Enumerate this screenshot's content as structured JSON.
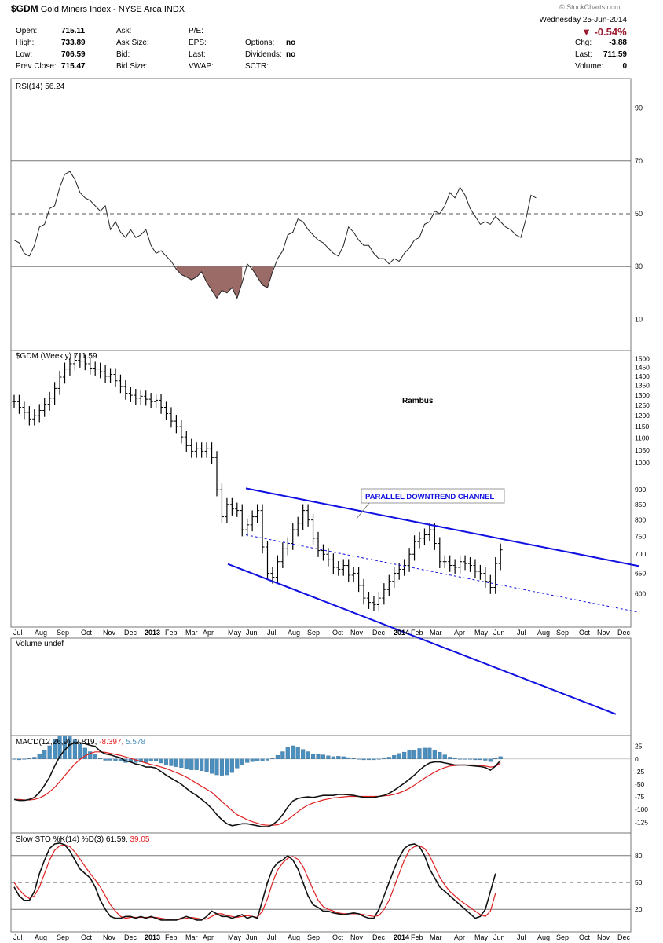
{
  "header": {
    "symbol": "$GDM",
    "name": "Gold Miners Index - NYSE Arca INDX",
    "watermark": "© StockCharts.com",
    "date": "Wednesday   25-Jun-2014",
    "pct_change": "▼ -0.54%",
    "quote_left": [
      {
        "label": "Open:",
        "value": "715.11"
      },
      {
        "label": "High:",
        "value": "733.89"
      },
      {
        "label": "Low:",
        "value": "706.59"
      },
      {
        "label": "Prev Close:",
        "value": "715.47"
      }
    ],
    "quote_mid": [
      {
        "label": "Ask:",
        "value": ""
      },
      {
        "label": "Ask Size:",
        "value": ""
      },
      {
        "label": "Bid:",
        "value": ""
      },
      {
        "label": "Bid Size:",
        "value": ""
      }
    ],
    "quote_mid2": [
      {
        "label": "P/E:",
        "value": ""
      },
      {
        "label": "EPS:",
        "value": ""
      },
      {
        "label": "Last:",
        "value": ""
      },
      {
        "label": "VWAP:",
        "value": ""
      }
    ],
    "quote_right": [
      {
        "label": "",
        "value": ""
      },
      {
        "label": "Options:",
        "value": "no"
      },
      {
        "label": "Dividends:",
        "value": "no"
      },
      {
        "label": "SCTR:",
        "value": ""
      }
    ],
    "quote_far": [
      {
        "label": "Chg:",
        "value": "-3.88"
      },
      {
        "label": "Last:",
        "value": "711.59"
      },
      {
        "label": "Volume:",
        "value": "0"
      }
    ]
  },
  "colors": {
    "price_bar": "#000000",
    "channel": "#1010e0",
    "annotation": "#1010e0",
    "rsi_fill": "#9b6b68",
    "macd_hist": "#4b8fbf",
    "signal_red": "#e02020",
    "grid": "#999999"
  },
  "chart_data": [
    {
      "type": "line",
      "panel": "rsi",
      "title": "RSI(14) 56.24",
      "ylim": [
        0,
        100
      ],
      "yticks": [
        10,
        30,
        50,
        70,
        90
      ],
      "reference_lines": [
        30,
        50,
        70
      ],
      "series": [
        {
          "values": [
            40,
            39,
            35,
            34,
            38,
            45,
            46,
            52,
            53,
            60,
            65,
            66,
            63,
            58,
            56,
            55,
            53,
            51,
            53,
            44,
            47,
            43,
            41,
            44,
            41,
            42,
            44,
            38,
            35,
            36,
            34,
            32,
            29,
            27,
            26,
            25,
            26,
            28,
            24,
            21,
            18,
            21,
            20,
            22,
            18,
            24,
            31,
            29,
            26,
            23,
            22,
            28,
            33,
            36,
            42,
            43,
            48,
            47,
            44,
            42,
            40,
            39,
            37,
            35,
            34,
            38,
            45,
            43,
            40,
            38,
            38,
            35,
            33,
            33,
            31,
            33,
            32,
            35,
            37,
            40,
            41,
            46,
            47,
            51,
            50,
            53,
            58,
            56,
            60,
            57,
            52,
            49,
            46,
            47,
            46,
            49,
            47,
            45,
            44,
            42,
            41,
            48,
            57,
            56
          ]
        }
      ]
    },
    {
      "type": "ohlc",
      "panel": "price",
      "title": "$GDM (Weekly) 711.59",
      "annotation_title": "Rambus",
      "annotation_label": "PARALLEL DOWNTREND CHANNEL",
      "ylim": [
        540,
        1520
      ],
      "log_scale": true,
      "yticks": [
        600,
        650,
        700,
        750,
        800,
        850,
        900,
        1000,
        1050,
        1100,
        1150,
        1200,
        1250,
        1300,
        1350,
        1400,
        1450,
        1500
      ],
      "x_labels": [
        "Jul",
        "Aug",
        "Sep",
        "Oct",
        "Nov",
        "Dec",
        "2013",
        "Feb",
        "Mar",
        "Apr",
        "May",
        "Jun",
        "Jul",
        "Aug",
        "Sep",
        "Oct",
        "Nov",
        "Dec",
        "2014",
        "Feb",
        "Mar",
        "Apr",
        "May",
        "Jun",
        "Jul",
        "Aug",
        "Sep",
        "Oct",
        "Nov",
        "Dec"
      ],
      "closes": [
        1270,
        1240,
        1215,
        1185,
        1200,
        1225,
        1255,
        1285,
        1335,
        1395,
        1440,
        1470,
        1490,
        1485,
        1470,
        1445,
        1440,
        1425,
        1400,
        1410,
        1375,
        1345,
        1310,
        1300,
        1285,
        1295,
        1280,
        1270,
        1275,
        1240,
        1210,
        1175,
        1150,
        1105,
        1070,
        1045,
        1055,
        1045,
        1055,
        1020,
        900,
        810,
        850,
        835,
        830,
        770,
        785,
        810,
        830,
        720,
        650,
        640,
        680,
        715,
        730,
        770,
        790,
        830,
        800,
        745,
        710,
        700,
        685,
        665,
        660,
        670,
        645,
        650,
        620,
        590,
        580,
        575,
        590,
        610,
        630,
        650,
        660,
        670,
        700,
        735,
        745,
        755,
        770,
        730,
        680,
        680,
        670,
        665,
        680,
        675,
        670,
        655,
        650,
        630,
        615,
        675,
        712
      ],
      "channel_upper": [
        {
          "date": "May 2013",
          "value": 905
        },
        {
          "date": "Dec 2014",
          "value": 668
        }
      ],
      "channel_middle": [
        {
          "date": "May 2013",
          "value": 755
        },
        {
          "date": "Dec 2014",
          "value": 558
        }
      ],
      "channel_lower": [
        {
          "date": "May 2013",
          "value": 630
        },
        {
          "date": "Dec 2014",
          "value": 465
        }
      ]
    },
    {
      "type": "bar",
      "panel": "volume",
      "title": "Volume undef",
      "values": []
    },
    {
      "type": "line",
      "panel": "macd",
      "title_prefix": "MACD(12,26,9)",
      "title_macd": "-2.819",
      "title_signal": "-8.397",
      "title_hist": "5.578",
      "ylim": [
        -140,
        40
      ],
      "yticks": [
        25,
        0,
        -25,
        -50,
        -75,
        -100,
        -125
      ],
      "series": [
        {
          "values": [
            -80,
            -82,
            -82,
            -80,
            -76,
            -66,
            -52,
            -36,
            -14,
            5,
            18,
            28,
            32,
            32,
            30,
            27,
            25,
            15,
            10,
            8,
            5,
            2,
            -4,
            -6,
            -10,
            -12,
            -16,
            -16,
            -18,
            -25,
            -32,
            -38,
            -44,
            -50,
            -58,
            -66,
            -72,
            -80,
            -88,
            -98,
            -110,
            -120,
            -128,
            -132,
            -130,
            -128,
            -128,
            -130,
            -132,
            -134,
            -134,
            -130,
            -122,
            -110,
            -95,
            -83,
            -78,
            -76,
            -75,
            -76,
            -74,
            -72,
            -72,
            -72,
            -70,
            -70,
            -71,
            -72,
            -74,
            -76,
            -76,
            -76,
            -74,
            -72,
            -68,
            -62,
            -55,
            -48,
            -40,
            -32,
            -22,
            -14,
            -8,
            -6,
            -6,
            -8,
            -10,
            -12,
            -12,
            -12,
            -13,
            -14,
            -15,
            -17,
            -22,
            -14,
            -3
          ]
        },
        {
          "values": [
            -80,
            -80,
            -81,
            -81,
            -80,
            -77,
            -72,
            -65,
            -56,
            -45,
            -33,
            -21,
            -10,
            -1,
            6,
            11,
            14,
            14,
            13,
            11,
            9,
            7,
            4,
            1,
            -2,
            -5,
            -8,
            -11,
            -13,
            -16,
            -19,
            -23,
            -27,
            -31,
            -36,
            -42,
            -48,
            -54,
            -60,
            -66,
            -75,
            -84,
            -93,
            -102,
            -110,
            -115,
            -120,
            -124,
            -127,
            -130,
            -131,
            -131,
            -130,
            -126,
            -120,
            -112,
            -104,
            -97,
            -91,
            -87,
            -84,
            -81,
            -79,
            -77,
            -76,
            -75,
            -74,
            -74,
            -74,
            -74,
            -74,
            -74,
            -74,
            -73,
            -72,
            -70,
            -67,
            -63,
            -58,
            -52,
            -45,
            -38,
            -32,
            -26,
            -21,
            -17,
            -14,
            -13,
            -12,
            -12,
            -12,
            -12,
            -13,
            -14,
            -16,
            -15,
            -8
          ]
        }
      ]
    },
    {
      "type": "line",
      "panel": "stochastic",
      "title_prefix": "Slow STO %K(14) %D(3)",
      "title_k": "61.59",
      "title_d": "39.05",
      "ylim": [
        0,
        100
      ],
      "yticks": [
        20,
        50,
        80
      ],
      "reference_lines": [
        20,
        50,
        80
      ],
      "series": [
        {
          "values": [
            45,
            35,
            30,
            30,
            40,
            60,
            75,
            88,
            93,
            94,
            92,
            85,
            75,
            65,
            60,
            55,
            45,
            30,
            20,
            12,
            10,
            10,
            12,
            12,
            10,
            12,
            10,
            12,
            10,
            8,
            8,
            8,
            8,
            10,
            12,
            10,
            8,
            8,
            12,
            18,
            15,
            12,
            12,
            10,
            12,
            14,
            10,
            12,
            10,
            30,
            50,
            65,
            72,
            75,
            80,
            75,
            65,
            50,
            35,
            25,
            22,
            18,
            18,
            16,
            15,
            14,
            15,
            16,
            15,
            12,
            10,
            10,
            20,
            35,
            50,
            65,
            78,
            88,
            92,
            93,
            90,
            80,
            65,
            55,
            45,
            40,
            35,
            30,
            25,
            20,
            15,
            10,
            12,
            20,
            40,
            60
          ]
        },
        {
          "values": [
            50,
            42,
            36,
            32,
            35,
            45,
            60,
            75,
            86,
            91,
            92,
            90,
            84,
            76,
            68,
            60,
            53,
            45,
            35,
            25,
            18,
            12,
            10,
            11,
            11,
            11,
            11,
            11,
            11,
            10,
            9,
            8,
            8,
            9,
            10,
            11,
            10,
            9,
            9,
            12,
            15,
            15,
            13,
            12,
            11,
            12,
            13,
            12,
            11,
            18,
            32,
            50,
            64,
            72,
            77,
            79,
            76,
            68,
            55,
            42,
            30,
            23,
            20,
            18,
            16,
            15,
            15,
            15,
            15,
            14,
            13,
            12,
            13,
            20,
            30,
            45,
            60,
            75,
            86,
            90,
            91,
            88,
            80,
            68,
            56,
            47,
            40,
            35,
            30,
            26,
            22,
            18,
            14,
            12,
            18,
            38
          ]
        }
      ]
    }
  ]
}
